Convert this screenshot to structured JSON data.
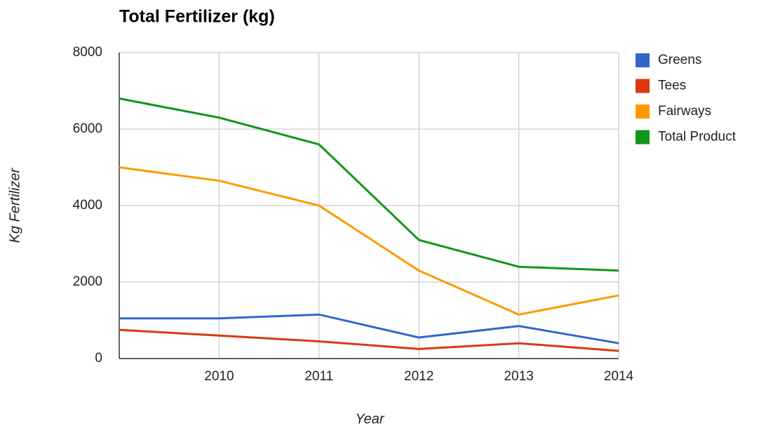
{
  "chart_data": {
    "type": "line",
    "title": "Total Fertilizer (kg)",
    "x_label": "Year",
    "y_label": "Kg Fertilizer",
    "x": [
      2009,
      2010,
      2011,
      2012,
      2013,
      2014
    ],
    "xlim": [
      2009,
      2014
    ],
    "xticks": [
      2010,
      2011,
      2012,
      2013,
      2014
    ],
    "ylim": [
      0,
      8000
    ],
    "yticks": [
      0,
      2000,
      4000,
      6000,
      8000
    ],
    "grid": true,
    "legend": "right",
    "series": [
      {
        "name": "Greens",
        "color": "#3366cc",
        "values": [
          1050,
          1050,
          1150,
          550,
          850,
          400
        ]
      },
      {
        "name": "Tees",
        "color": "#dc3912",
        "values": [
          750,
          600,
          450,
          250,
          400,
          200
        ]
      },
      {
        "name": "Fairways",
        "color": "#ff9900",
        "values": [
          5000,
          4650,
          4000,
          2300,
          1150,
          1650
        ]
      },
      {
        "name": "Total Product",
        "color": "#109618",
        "values": [
          6800,
          6300,
          5600,
          3100,
          2400,
          2300
        ]
      }
    ]
  }
}
